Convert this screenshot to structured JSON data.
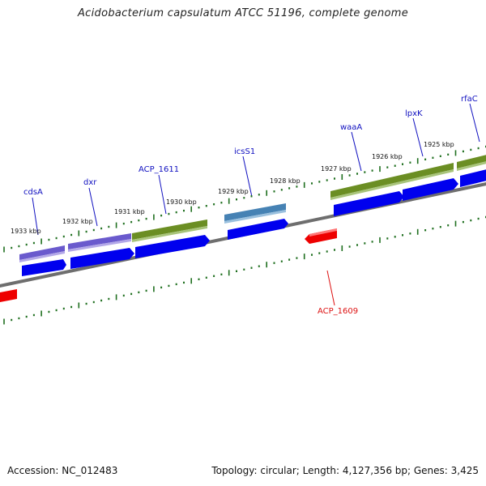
{
  "title": "Acidobacterium capsulatum ATCC 51196, complete genome",
  "footer": {
    "accession": "Accession: NC_012483",
    "summary": "Topology: circular; Length: 4,127,356 bp; Genes: 3,425"
  },
  "colors": {
    "backbone": "#7a7a7a",
    "tick": "#1f6f1f",
    "gene_label": "#1010c0",
    "gene_label_red": "#dd1111",
    "cds_blue": "#0000ee",
    "purple": "#6a5acd",
    "olive": "#6b8e23",
    "steel": "#4682b4",
    "red": "#ee0000"
  },
  "kbp_labels": [
    "1933 kbp",
    "1932 kbp",
    "1931 kbp",
    "1930 kbp",
    "1929 kbp",
    "1928 kbp",
    "1927 kbp",
    "1926 kbp",
    "1925 kbp"
  ],
  "genes": [
    {
      "name": "cdsA",
      "color": "#1010c0"
    },
    {
      "name": "dxr",
      "color": "#1010c0"
    },
    {
      "name": "ACP_1611",
      "color": "#1010c0"
    },
    {
      "name": "icsS1",
      "color": "#1010c0"
    },
    {
      "name": "waaA",
      "color": "#1010c0"
    },
    {
      "name": "lpxK",
      "color": "#1010c0"
    },
    {
      "name": "rfaC",
      "color": "#1010c0"
    },
    {
      "name": "ACP_1609",
      "color": "#dd1111"
    }
  ]
}
